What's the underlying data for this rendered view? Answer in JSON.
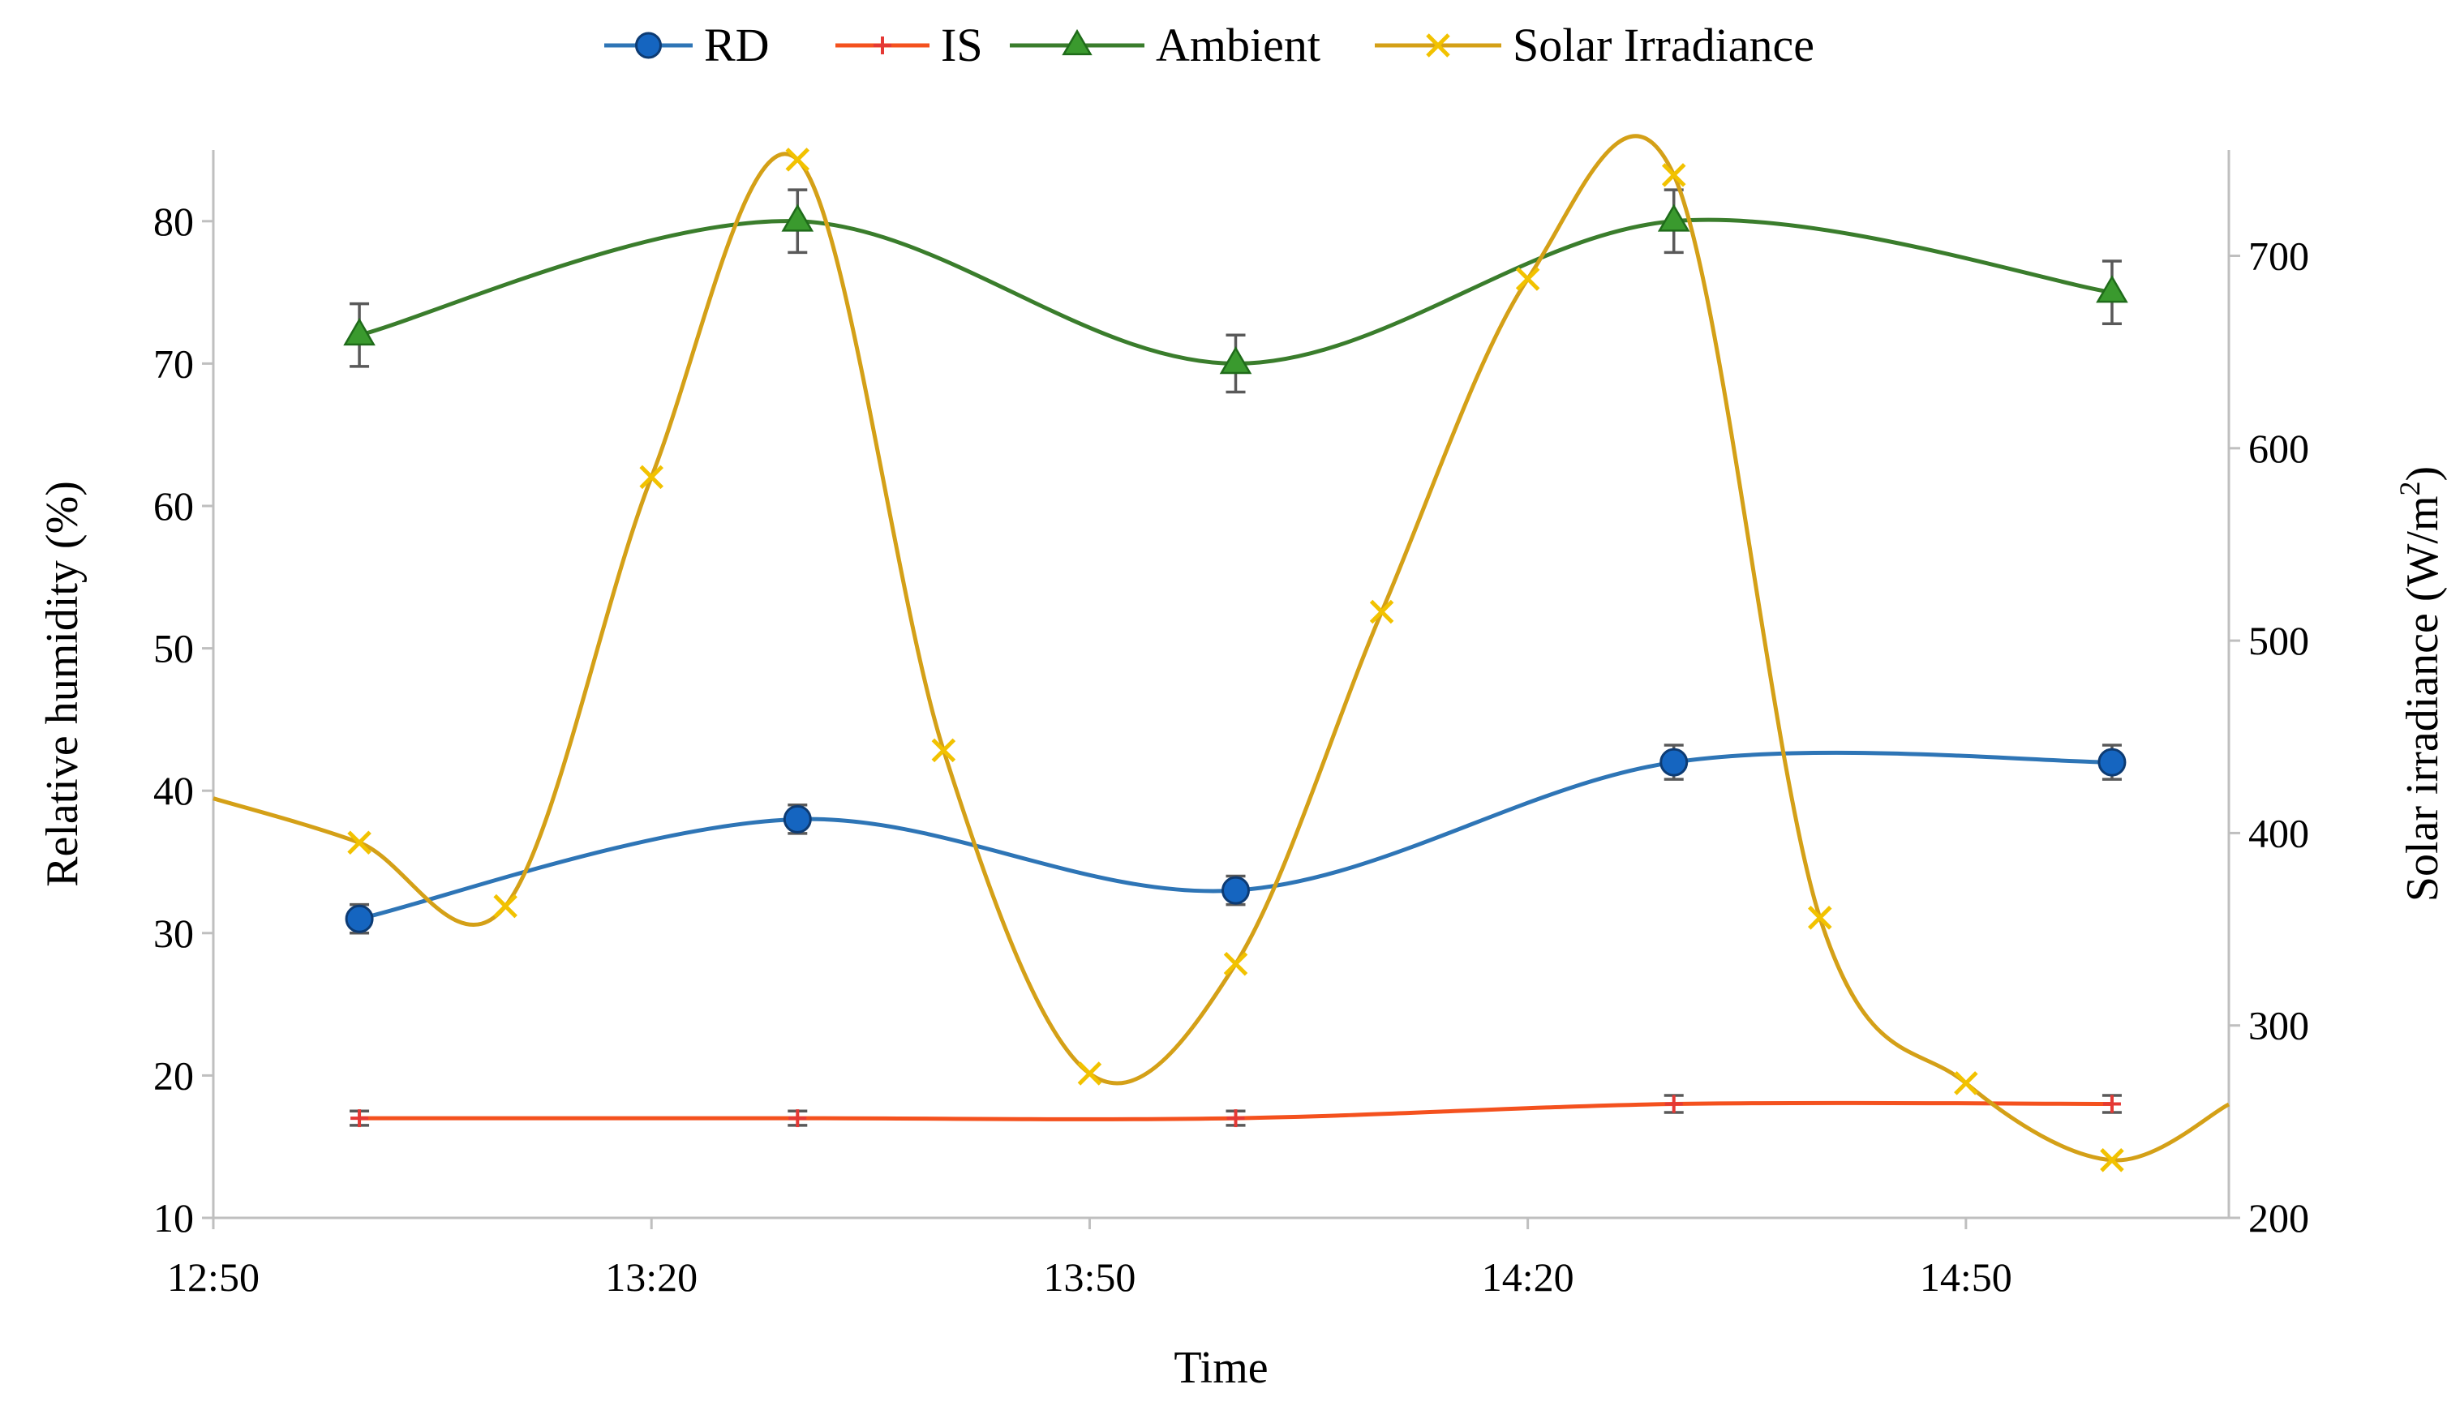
{
  "chart_data": {
    "type": "line",
    "title": "",
    "xlabel": "Time",
    "ylabel": "Relative humidity (%)",
    "y2label_main": "Solar irradiance  (W/m",
    "y2label_sup": "2",
    "y2label_close": ")",
    "ylim": [
      10,
      85
    ],
    "y2lim": [
      200,
      755
    ],
    "yticks": [
      10,
      20,
      30,
      40,
      50,
      60,
      70,
      80
    ],
    "y2ticks": [
      200,
      300,
      400,
      500,
      600,
      700
    ],
    "xlim_minutes": [
      770,
      908
    ],
    "xticks": [
      {
        "label": "12:50",
        "minute": 770
      },
      {
        "label": "13:20",
        "minute": 800
      },
      {
        "label": "13:50",
        "minute": 830
      },
      {
        "label": "14:20",
        "minute": 860
      },
      {
        "label": "14:50",
        "minute": 890
      }
    ],
    "legend_position": "top-center",
    "series": [
      {
        "name": "RD",
        "axis": "left",
        "color": "#2E75B6",
        "marker": "circle",
        "x_minutes": [
          780,
          810,
          840,
          870,
          900
        ],
        "values": [
          31,
          38,
          33,
          42,
          42
        ],
        "errors": [
          1,
          1,
          1,
          1.2,
          1.2
        ]
      },
      {
        "name": "IS",
        "axis": "left",
        "color": "#F4511E",
        "marker": "plus",
        "x_minutes": [
          780,
          810,
          840,
          870,
          900
        ],
        "values": [
          17,
          17,
          17,
          18,
          18
        ],
        "errors": [
          0.5,
          0.5,
          0.5,
          0.6,
          0.6
        ]
      },
      {
        "name": "Ambient",
        "axis": "left",
        "color": "#3A7D2C",
        "marker": "triangle",
        "x_minutes": [
          780,
          810,
          840,
          870,
          900
        ],
        "values": [
          72,
          80,
          70,
          80,
          75
        ],
        "errors": [
          2.2,
          2.2,
          2,
          2.2,
          2.2
        ]
      },
      {
        "name": "Solar Irradiance",
        "axis": "right",
        "color": "#D4A017",
        "marker_color": "#F2C200",
        "marker": "x",
        "x_minutes": [
          770,
          780,
          790,
          800,
          810,
          820,
          830,
          840,
          850,
          860,
          870,
          880,
          890,
          900,
          908
        ],
        "values": [
          418,
          395,
          362,
          585,
          750,
          443,
          275,
          332,
          515,
          688,
          742,
          356,
          270,
          230,
          259
        ],
        "marker_mask": [
          false,
          true,
          true,
          true,
          true,
          true,
          true,
          true,
          true,
          true,
          true,
          true,
          true,
          true,
          false
        ]
      }
    ]
  }
}
